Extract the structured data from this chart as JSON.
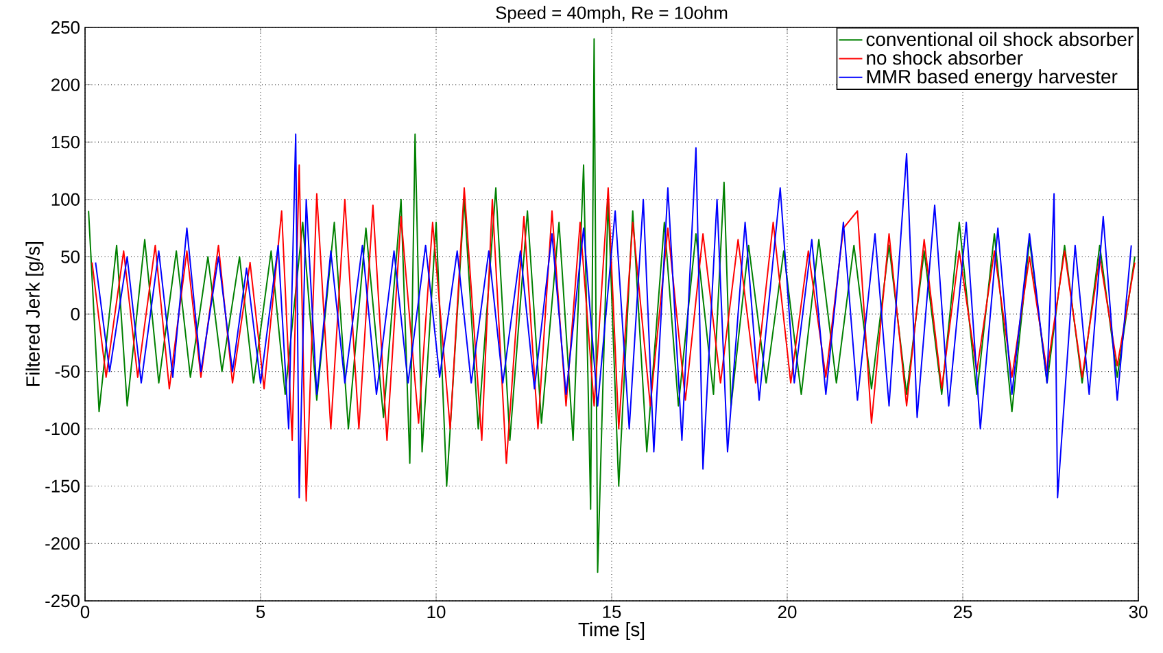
{
  "chart_data": {
    "type": "line",
    "title": "Speed = 40mph, Re = 10ohm",
    "xlabel": "Time [s]",
    "ylabel": "Filtered Jerk [g/s]",
    "xlim": [
      0,
      30
    ],
    "ylim": [
      -250,
      250
    ],
    "xticks": [
      0,
      5,
      10,
      15,
      20,
      25,
      30
    ],
    "yticks": [
      -250,
      -200,
      -150,
      -100,
      -50,
      0,
      50,
      100,
      150,
      200,
      250
    ],
    "grid": true,
    "legend": "top right",
    "line_style": "solid",
    "series": [
      {
        "name": "conventional oil shock absorber",
        "color": "#008000",
        "x": [
          0.1,
          0.4,
          0.9,
          1.2,
          1.7,
          2.1,
          2.6,
          3.0,
          3.5,
          3.9,
          4.4,
          4.8,
          5.3,
          5.7,
          6.2,
          6.6,
          7.1,
          7.5,
          8.0,
          8.5,
          9.0,
          9.25,
          9.4,
          9.6,
          10.0,
          10.3,
          10.8,
          11.2,
          11.7,
          12.1,
          12.6,
          13.0,
          13.5,
          13.9,
          14.2,
          14.4,
          14.5,
          14.6,
          14.9,
          15.2,
          15.6,
          16.0,
          16.5,
          16.9,
          17.4,
          17.9,
          18.2,
          18.4,
          18.9,
          19.4,
          19.9,
          20.4,
          20.9,
          21.4,
          21.9,
          22.4,
          22.9,
          23.4,
          23.9,
          24.4,
          24.9,
          25.4,
          25.9,
          26.4,
          26.9,
          27.4,
          27.9,
          28.4,
          28.9,
          29.4,
          29.9
        ],
        "values": [
          90,
          -85,
          60,
          -80,
          65,
          -60,
          55,
          -55,
          50,
          -50,
          50,
          -60,
          55,
          -70,
          80,
          -75,
          80,
          -100,
          75,
          -90,
          100,
          -130,
          157,
          -120,
          80,
          -150,
          100,
          -100,
          110,
          -110,
          90,
          -95,
          80,
          -110,
          130,
          -170,
          240,
          -225,
          100,
          -150,
          90,
          -120,
          80,
          -80,
          70,
          -70,
          115,
          -80,
          60,
          -60,
          55,
          -70,
          65,
          -60,
          60,
          -65,
          60,
          -70,
          55,
          -70,
          80,
          -70,
          70,
          -85,
          65,
          -60,
          60,
          -60,
          60,
          -55,
          50
        ]
      },
      {
        "name": "no shock absorber",
        "color": "#ff0000",
        "x": [
          0.2,
          0.6,
          1.1,
          1.5,
          2.0,
          2.4,
          2.9,
          3.3,
          3.8,
          4.2,
          4.7,
          5.1,
          5.6,
          5.9,
          6.1,
          6.3,
          6.6,
          7.0,
          7.4,
          7.8,
          8.2,
          8.6,
          9.0,
          9.5,
          9.9,
          10.4,
          10.8,
          11.3,
          11.6,
          12.0,
          12.5,
          12.9,
          13.3,
          13.7,
          14.1,
          14.5,
          14.9,
          15.2,
          15.6,
          16.1,
          16.6,
          17.1,
          17.6,
          18.1,
          18.6,
          19.1,
          19.6,
          20.1,
          20.6,
          21.1,
          21.6,
          22.0,
          22.4,
          22.9,
          23.4,
          23.9,
          24.4,
          24.9,
          25.4,
          25.9,
          26.4,
          26.9,
          27.4,
          27.9,
          28.4,
          28.9,
          29.4,
          29.9
        ],
        "values": [
          45,
          -55,
          55,
          -55,
          60,
          -65,
          55,
          -55,
          60,
          -60,
          45,
          -65,
          90,
          -110,
          130,
          -163,
          105,
          -100,
          100,
          -100,
          95,
          -110,
          85,
          -95,
          80,
          -100,
          110,
          -110,
          100,
          -130,
          85,
          -100,
          90,
          -80,
          80,
          -80,
          110,
          -100,
          80,
          -80,
          75,
          -75,
          70,
          -60,
          65,
          -60,
          80,
          -60,
          55,
          -55,
          75,
          90,
          -95,
          70,
          -80,
          65,
          -65,
          55,
          -50,
          55,
          -55,
          50,
          -50,
          55,
          -55,
          50,
          -45,
          45
        ]
      },
      {
        "name": "MMR based energy harvester",
        "color": "#0000ff",
        "x": [
          0.3,
          0.7,
          1.2,
          1.6,
          2.1,
          2.5,
          2.9,
          3.3,
          3.8,
          4.2,
          4.6,
          5.0,
          5.5,
          5.8,
          6.0,
          6.1,
          6.3,
          6.6,
          7.0,
          7.4,
          7.9,
          8.3,
          8.8,
          9.2,
          9.7,
          10.1,
          10.6,
          11.0,
          11.5,
          11.9,
          12.4,
          12.8,
          13.3,
          13.7,
          14.2,
          14.6,
          15.1,
          15.5,
          15.9,
          16.2,
          16.6,
          17.0,
          17.4,
          17.6,
          18.0,
          18.3,
          18.8,
          19.2,
          19.8,
          20.2,
          20.7,
          21.1,
          21.6,
          22.0,
          22.5,
          22.9,
          23.4,
          23.7,
          24.2,
          24.6,
          25.1,
          25.5,
          26.0,
          26.4,
          26.9,
          27.4,
          27.6,
          27.7,
          28.2,
          28.6,
          29.0,
          29.4,
          29.8
        ],
        "values": [
          45,
          -50,
          50,
          -60,
          55,
          -55,
          75,
          -50,
          50,
          -50,
          40,
          -60,
          60,
          -100,
          157,
          -160,
          100,
          -70,
          55,
          -60,
          60,
          -70,
          55,
          -60,
          60,
          -55,
          55,
          -60,
          55,
          -60,
          55,
          -65,
          70,
          -70,
          75,
          -80,
          90,
          -100,
          100,
          -120,
          110,
          -110,
          145,
          -135,
          100,
          -120,
          80,
          -75,
          110,
          -60,
          65,
          -70,
          80,
          -75,
          70,
          -80,
          140,
          -90,
          95,
          -80,
          80,
          -100,
          75,
          -70,
          70,
          -60,
          105,
          -160,
          60,
          -70,
          85,
          -75,
          60
        ]
      }
    ]
  }
}
